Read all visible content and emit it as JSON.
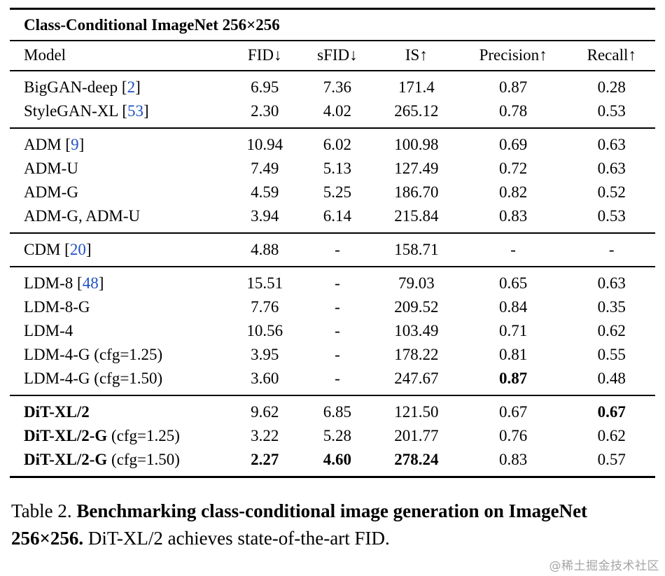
{
  "page": {
    "watermark": "@稀土掘金技术社区"
  },
  "colors": {
    "citation_link": "#2150C2",
    "rule": "#000000",
    "watermark_gray": "#A6A6A6"
  },
  "table": {
    "title": "Class-Conditional ImageNet 256×256",
    "columns": [
      "Model",
      "FID↓",
      "sFID↓",
      "IS↑",
      "Precision↑",
      "Recall↑"
    ],
    "groups": [
      {
        "rows": [
          {
            "model": "BigGAN-deep",
            "cite": "2",
            "values": [
              "6.95",
              "7.36",
              "171.4",
              "0.87",
              "0.28"
            ]
          },
          {
            "model": "StyleGAN-XL",
            "cite": "53",
            "values": [
              "2.30",
              "4.02",
              "265.12",
              "0.78",
              "0.53"
            ]
          }
        ]
      },
      {
        "rows": [
          {
            "model": "ADM",
            "cite": "9",
            "values": [
              "10.94",
              "6.02",
              "100.98",
              "0.69",
              "0.63"
            ]
          },
          {
            "model": "ADM-U",
            "values": [
              "7.49",
              "5.13",
              "127.49",
              "0.72",
              "0.63"
            ]
          },
          {
            "model": "ADM-G",
            "values": [
              "4.59",
              "5.25",
              "186.70",
              "0.82",
              "0.52"
            ]
          },
          {
            "model": "ADM-G, ADM-U",
            "values": [
              "3.94",
              "6.14",
              "215.84",
              "0.83",
              "0.53"
            ]
          }
        ]
      },
      {
        "rows": [
          {
            "model": "CDM",
            "cite": "20",
            "values": [
              "4.88",
              "-",
              "158.71",
              "-",
              "-"
            ]
          }
        ]
      },
      {
        "rows": [
          {
            "model": "LDM-8",
            "cite": "48",
            "values": [
              "15.51",
              "-",
              "79.03",
              "0.65",
              "0.63"
            ]
          },
          {
            "model": "LDM-8-G",
            "values": [
              "7.76",
              "-",
              "209.52",
              "0.84",
              "0.35"
            ]
          },
          {
            "model": "LDM-4",
            "values": [
              "10.56",
              "-",
              "103.49",
              "0.71",
              "0.62"
            ]
          },
          {
            "model": "LDM-4-G (cfg=1.25)",
            "values": [
              "3.95",
              "-",
              "178.22",
              "0.81",
              "0.55"
            ]
          },
          {
            "model": "LDM-4-G (cfg=1.50)",
            "values": [
              "3.60",
              "-",
              "247.67",
              "0.87",
              "0.48"
            ],
            "bold": [
              false,
              false,
              false,
              true,
              false
            ]
          }
        ]
      },
      {
        "rows": [
          {
            "model": "DiT-XL/2",
            "model_bold": true,
            "values": [
              "9.62",
              "6.85",
              "121.50",
              "0.67",
              "0.67"
            ],
            "bold": [
              false,
              false,
              false,
              false,
              true
            ]
          },
          {
            "model": "DiT-XL/2-G",
            "model_bold": true,
            "suffix": " (cfg=1.25)",
            "values": [
              "3.22",
              "5.28",
              "201.77",
              "0.76",
              "0.62"
            ]
          },
          {
            "model": "DiT-XL/2-G",
            "model_bold": true,
            "suffix": " (cfg=1.50)",
            "values": [
              "2.27",
              "4.60",
              "278.24",
              "0.83",
              "0.57"
            ],
            "bold": [
              true,
              true,
              true,
              false,
              false
            ]
          }
        ]
      }
    ]
  },
  "caption": {
    "label": "Table 2. ",
    "bold": "Benchmarking class-conditional image generation on ImageNet 256×256.",
    "rest": " DiT-XL/2 achieves state-of-the-art FID."
  }
}
